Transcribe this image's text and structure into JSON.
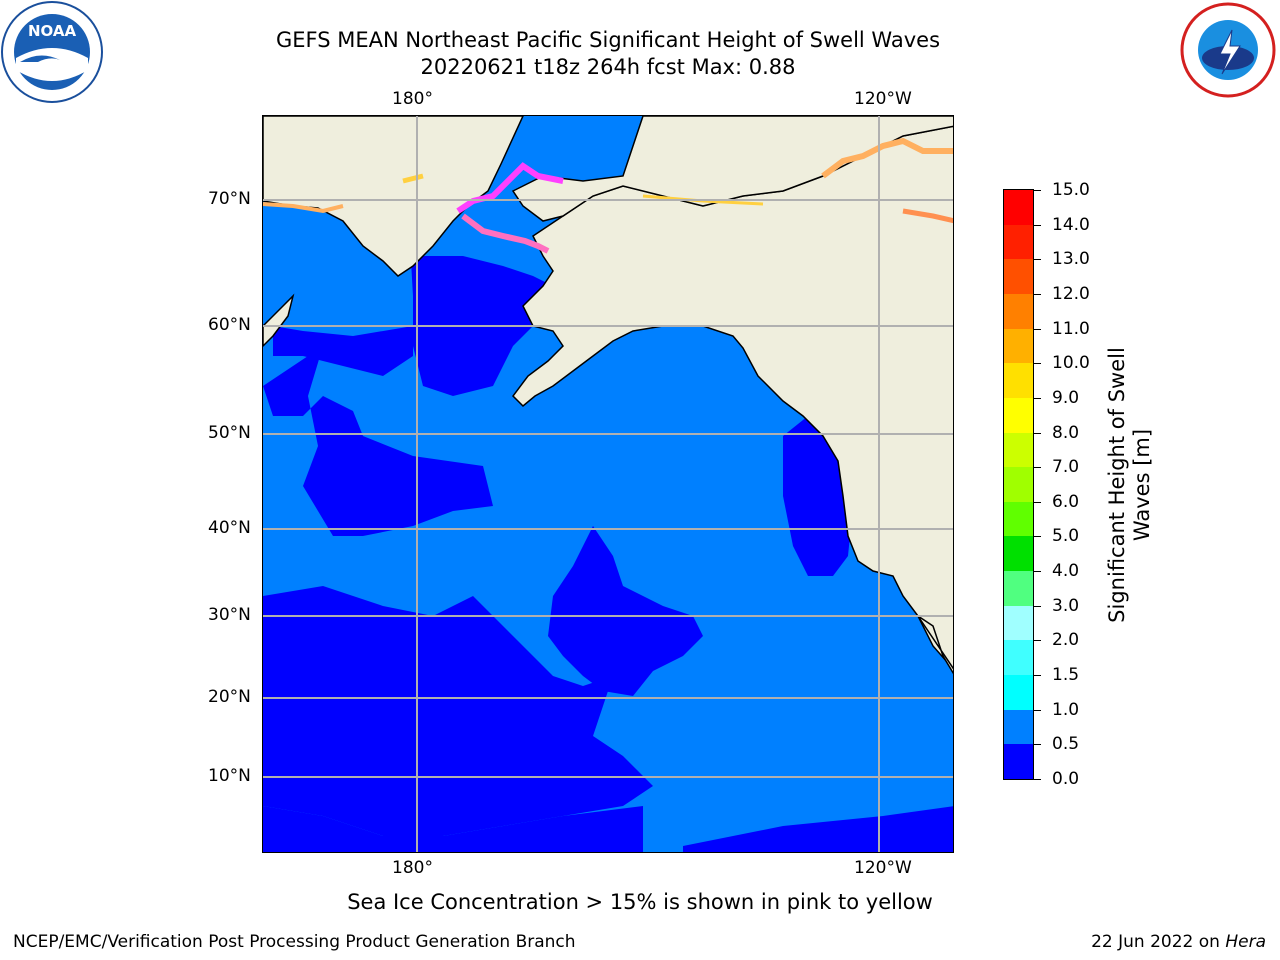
{
  "title_line1": "GEFS MEAN Northeast Pacific Significant Height of Swell Waves",
  "title_line2": "20220621 t18z 264h fcst   Max: 0.88",
  "logos": {
    "left": "noaa-logo",
    "right": "nws-logo"
  },
  "map_axes": {
    "lon_ticks": [
      {
        "label": "180°",
        "lon": 180
      },
      {
        "label": "120°W",
        "lon": -120
      }
    ],
    "lat_ticks": [
      {
        "label": "70°N",
        "lat": 70
      },
      {
        "label": "60°N",
        "lat": 60
      },
      {
        "label": "50°N",
        "lat": 50
      },
      {
        "label": "40°N",
        "lat": 40
      },
      {
        "label": "30°N",
        "lat": 30
      },
      {
        "label": "20°N",
        "lat": 20
      },
      {
        "label": "10°N",
        "lat": 10
      }
    ]
  },
  "colorbar": {
    "title": "Significant Height of Swell Waves [m]",
    "levels": [
      "0.0",
      "0.5",
      "1.0",
      "1.5",
      "2.0",
      "3.0",
      "4.0",
      "5.0",
      "6.0",
      "7.0",
      "8.0",
      "9.0",
      "10.0",
      "11.0",
      "12.0",
      "13.0",
      "14.0",
      "15.0"
    ],
    "colors": [
      "#0000ff",
      "#0080ff",
      "#00ffff",
      "#40ffff",
      "#a0ffff",
      "#50ff80",
      "#00e000",
      "#60ff00",
      "#a0ff00",
      "#ccff00",
      "#ffff00",
      "#ffe000",
      "#ffb000",
      "#ff8000",
      "#ff5000",
      "#ff2000",
      "#ff0000"
    ]
  },
  "colors": {
    "land": "#efeedd",
    "ocean_low": "#0000ff",
    "ocean_mid": "#0080ff",
    "ice": "#ff40ff",
    "grid": "#b0b0b0"
  },
  "ice_note": "Sea Ice Concentration > 15% is shown in pink to yellow",
  "footer_left": "NCEP/EMC/Verification Post Processing Product Generation Branch",
  "footer_date": "22 Jun 2022 on ",
  "footer_machine": "Hera"
}
